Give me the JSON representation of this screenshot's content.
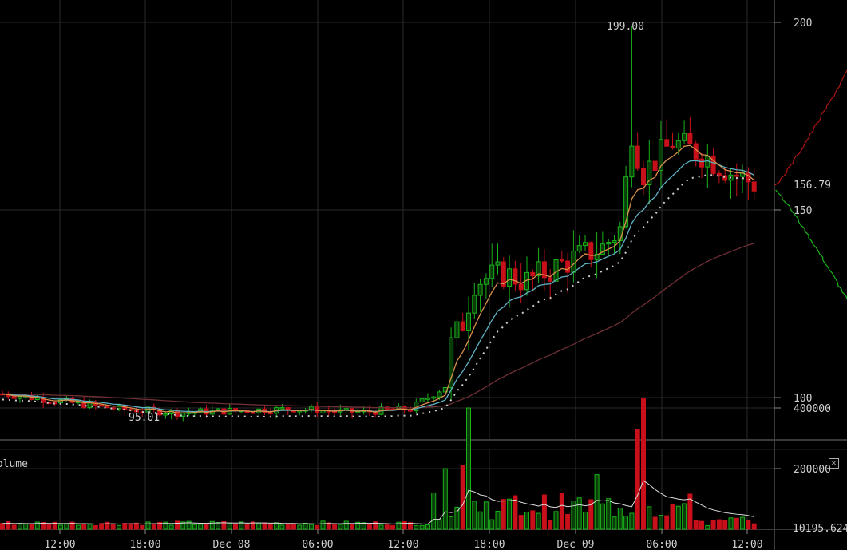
{
  "chart_data": {
    "type": "candlestick",
    "price_axis": {
      "ticks": [
        100,
        150,
        200
      ],
      "tick_labels": [
        "100",
        "150",
        "200"
      ],
      "ylim": [
        90,
        201
      ]
    },
    "volume_axis": {
      "ticks": [
        200000,
        400000
      ],
      "tick_labels": [
        "200000",
        "400000"
      ],
      "ylim": [
        0,
        430000
      ]
    },
    "time_axis": {
      "tick_labels": [
        "12:00",
        "18:00",
        "Dec 08",
        "06:00",
        "12:00",
        "18:00",
        "Dec 09",
        "06:00",
        "12:00"
      ]
    },
    "annotations": {
      "high_label": "199.00",
      "low_label": "95.01",
      "last_price_label": "156.79",
      "volume_last_label": "10195.624"
    },
    "volume_label": "Volume",
    "colors": {
      "up": "#19b319",
      "down": "#c8101a",
      "ema_fast": "#d9904a",
      "ema_mid": "#5fb3c4",
      "sma_long": "#6e2f35",
      "vwap": "#cccccc",
      "depth_bid": "#b01515",
      "depth_ask": "#19b319",
      "grid": "#2a2a2a"
    }
  }
}
